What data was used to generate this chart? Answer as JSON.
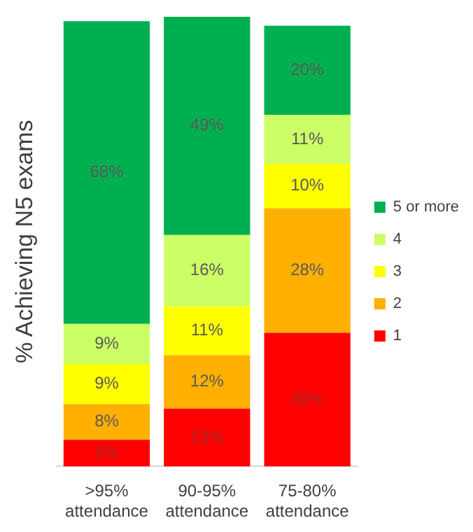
{
  "chart_data": {
    "type": "bar",
    "stacked": true,
    "ylabel": "% Achieving N5 exams",
    "categories": [
      ">95% attendance",
      "90-95% attendance",
      "75-80% attendance"
    ],
    "ylim": [
      0,
      101
    ],
    "tick_labels": "x",
    "grid": false,
    "legend": "right",
    "series": [
      {
        "name": "1",
        "color": "#ff0000",
        "values": [
          6,
          13,
          30
        ],
        "value_labels": [
          "6%",
          "13%",
          "30%"
        ]
      },
      {
        "name": "2",
        "color": "#ffb000",
        "values": [
          8,
          12,
          28
        ],
        "value_labels": [
          "8%",
          "12%",
          "28%"
        ]
      },
      {
        "name": "3",
        "color": "#ffff00",
        "values": [
          9,
          11,
          10
        ],
        "value_labels": [
          "9%",
          "11%",
          "10%"
        ]
      },
      {
        "name": "4",
        "color": "#ccff66",
        "values": [
          9,
          16,
          11
        ],
        "value_labels": [
          "9%",
          "16%",
          "11%"
        ]
      },
      {
        "name": "5 or more",
        "color": "#00b050",
        "values": [
          68,
          49,
          20
        ],
        "value_labels": [
          "68%",
          "49%",
          "20%"
        ]
      }
    ]
  }
}
